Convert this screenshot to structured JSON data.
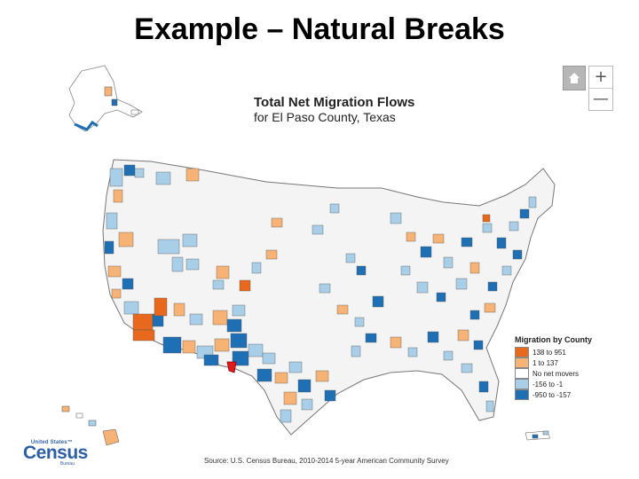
{
  "slide_title": "Example – Natural Breaks",
  "map": {
    "title_line1": "Total Net Migration Flows",
    "title_line2": "for El Paso County, Texas",
    "legend_title": "Migration by County",
    "legend": [
      {
        "label": "138 to 951",
        "color": "#e8681d"
      },
      {
        "label": "1 to 137",
        "color": "#f7b276"
      },
      {
        "label": "No net movers",
        "color": "#ffffff"
      },
      {
        "label": "-156 to -1",
        "color": "#a9cfe8"
      },
      {
        "label": "-950 to -157",
        "color": "#1f6fb4"
      }
    ],
    "focus_county_color": "#e31a1c",
    "source": "Source: U.S. Census Bureau, 2010-2014 5-year American Community Survey"
  },
  "controls": {
    "home_icon": "home-icon",
    "zoom_in": "+",
    "zoom_out": "—"
  },
  "logo": {
    "top": "United States™",
    "main": "Census",
    "bottom": "Bureau"
  }
}
